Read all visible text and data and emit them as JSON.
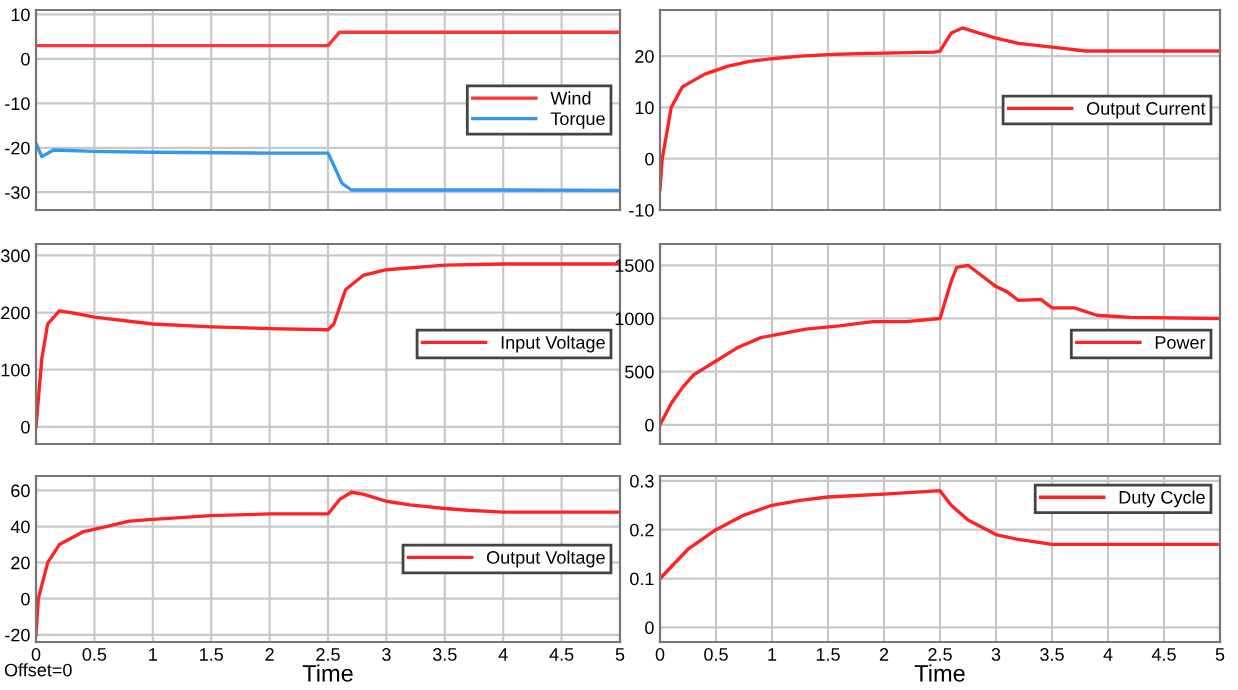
{
  "chart_data": [
    {
      "type": "line",
      "xlim": [
        0,
        5
      ],
      "xticks": [
        0,
        0.5,
        1,
        1.5,
        2,
        2.5,
        3,
        3.5,
        4,
        4.5,
        5
      ],
      "ylim": [
        -34,
        11
      ],
      "yticks": [
        -30,
        -20,
        -10,
        0,
        10
      ],
      "grid": true,
      "legend": "right",
      "tick_labels": "y",
      "series": [
        {
          "name": "Wind",
          "color": "#ff3333",
          "x": [
            0,
            2.5,
            2.6,
            5
          ],
          "values": [
            3,
            3,
            6,
            6
          ]
        },
        {
          "name": "Torque",
          "color": "#3399ee",
          "x": [
            0,
            0.05,
            0.15,
            0.5,
            1,
            2,
            2.5,
            2.55,
            2.62,
            2.7,
            3,
            4,
            5
          ],
          "values": [
            -19,
            -22,
            -20.5,
            -20.8,
            -21,
            -21.2,
            -21.2,
            -24,
            -28,
            -29.5,
            -29.5,
            -29.5,
            -29.6
          ]
        }
      ]
    },
    {
      "type": "line",
      "xlim": [
        0,
        5
      ],
      "xticks": [
        0,
        0.5,
        1,
        1.5,
        2,
        2.5,
        3,
        3.5,
        4,
        4.5,
        5
      ],
      "ylim": [
        -10,
        29
      ],
      "yticks": [
        -10,
        0,
        10,
        20
      ],
      "grid": true,
      "legend": "right",
      "tick_labels": "y",
      "series": [
        {
          "name": "Output Current",
          "color": "#ff2222",
          "x": [
            0,
            0.02,
            0.1,
            0.2,
            0.4,
            0.6,
            0.8,
            1.0,
            1.25,
            1.5,
            1.75,
            2.0,
            2.45,
            2.5,
            2.6,
            2.7,
            2.85,
            3.0,
            3.2,
            3.4,
            3.6,
            3.8,
            4.0,
            5
          ],
          "values": [
            -6,
            0,
            10,
            14,
            16.5,
            18,
            19,
            19.5,
            20,
            20.3,
            20.5,
            20.6,
            20.8,
            21,
            24.5,
            25.5,
            24.5,
            23.5,
            22.5,
            22,
            21.5,
            21,
            21,
            21
          ]
        }
      ]
    },
    {
      "type": "line",
      "xlim": [
        0,
        5
      ],
      "xticks": [
        0,
        0.5,
        1,
        1.5,
        2,
        2.5,
        3,
        3.5,
        4,
        4.5,
        5
      ],
      "ylim": [
        -30,
        320
      ],
      "yticks": [
        0,
        100,
        200,
        300
      ],
      "grid": true,
      "legend": "right",
      "tick_labels": "y",
      "series": [
        {
          "name": "Input Voltage",
          "color": "#ff2222",
          "x": [
            0,
            0.05,
            0.1,
            0.2,
            0.3,
            0.5,
            1,
            1.5,
            2,
            2.5,
            2.55,
            2.65,
            2.8,
            3,
            3.5,
            4,
            5
          ],
          "values": [
            0,
            120,
            180,
            203,
            200,
            192,
            180,
            175,
            172,
            170,
            180,
            240,
            265,
            275,
            283,
            285,
            285
          ]
        }
      ]
    },
    {
      "type": "line",
      "xlim": [
        0,
        5
      ],
      "xticks": [
        0,
        0.5,
        1,
        1.5,
        2,
        2.5,
        3,
        3.5,
        4,
        4.5,
        5
      ],
      "ylim": [
        -180,
        1700
      ],
      "yticks": [
        0,
        500,
        1000,
        1500
      ],
      "grid": true,
      "legend": "right",
      "tick_labels": "y",
      "series": [
        {
          "name": "Power",
          "color": "#ff2222",
          "x": [
            0,
            0.1,
            0.2,
            0.3,
            0.5,
            0.7,
            0.9,
            1.1,
            1.3,
            1.6,
            1.9,
            2.2,
            2.5,
            2.6,
            2.65,
            2.75,
            2.85,
            3,
            3.1,
            3.2,
            3.4,
            3.5,
            3.7,
            3.9,
            4.2,
            5
          ],
          "values": [
            0,
            200,
            350,
            470,
            600,
            730,
            820,
            860,
            900,
            930,
            970,
            970,
            1000,
            1350,
            1480,
            1500,
            1420,
            1300,
            1250,
            1170,
            1180,
            1100,
            1100,
            1030,
            1010,
            1000
          ]
        }
      ]
    },
    {
      "type": "line",
      "xlim": [
        0,
        5
      ],
      "xticks": [
        0,
        0.5,
        1,
        1.5,
        2,
        2.5,
        3,
        3.5,
        4,
        4.5,
        5
      ],
      "ylim": [
        -24,
        68
      ],
      "yticks": [
        -20,
        0,
        20,
        40,
        60
      ],
      "grid": true,
      "legend": "right",
      "xlabel": "Time",
      "annotations": [
        "Offset=0"
      ],
      "series": [
        {
          "name": "Output Voltage",
          "color": "#ff2222",
          "x": [
            0,
            0.02,
            0.1,
            0.2,
            0.4,
            0.6,
            0.8,
            1,
            1.5,
            2,
            2.5,
            2.6,
            2.7,
            2.8,
            3,
            3.2,
            3.5,
            3.7,
            4,
            5
          ],
          "values": [
            -20,
            0,
            20,
            30,
            37,
            40,
            43,
            44,
            46,
            47,
            47,
            55,
            59,
            58,
            54,
            52,
            50,
            49,
            48,
            48
          ]
        }
      ]
    },
    {
      "type": "line",
      "xlim": [
        0,
        5
      ],
      "xticks": [
        0,
        0.5,
        1,
        1.5,
        2,
        2.5,
        3,
        3.5,
        4,
        4.5,
        5
      ],
      "ylim": [
        -0.03,
        0.31
      ],
      "yticks": [
        0,
        0.1,
        0.2,
        0.3
      ],
      "grid": true,
      "legend": "top right",
      "xlabel": "Time",
      "series": [
        {
          "name": "Duty Cycle",
          "color": "#ff2222",
          "x": [
            0,
            0.25,
            0.5,
            0.75,
            1,
            1.25,
            1.5,
            2,
            2.5,
            2.6,
            2.75,
            3,
            3.2,
            3.5,
            5
          ],
          "values": [
            0.1,
            0.16,
            0.2,
            0.23,
            0.25,
            0.26,
            0.267,
            0.273,
            0.28,
            0.25,
            0.22,
            0.19,
            0.18,
            0.17,
            0.17
          ]
        }
      ]
    }
  ]
}
